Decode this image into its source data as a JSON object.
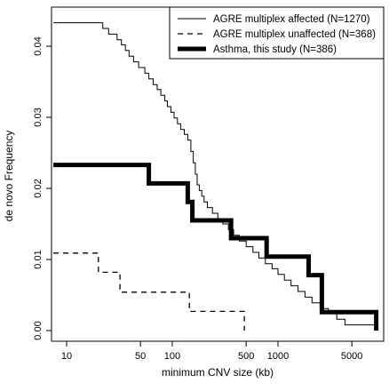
{
  "chart_data": {
    "type": "line",
    "step": true,
    "xlabel": "minimum CNV size (kb)",
    "ylabel": "de novo Frequency",
    "x_scale": "log",
    "xlim": [
      7.2,
      10000
    ],
    "ylim": [
      -0.0015,
      0.0455
    ],
    "x_ticks": [
      {
        "value": 10,
        "label": "10"
      },
      {
        "value": 50,
        "label": "50"
      },
      {
        "value": 100,
        "label": "100"
      },
      {
        "value": 500,
        "label": "500"
      },
      {
        "value": 1000,
        "label": "1000"
      },
      {
        "value": 5000,
        "label": "5000"
      }
    ],
    "y_ticks": [
      {
        "value": 0.0,
        "label": "0.00"
      },
      {
        "value": 0.01,
        "label": "0.01"
      },
      {
        "value": 0.02,
        "label": "0.02"
      },
      {
        "value": 0.03,
        "label": "0.03"
      },
      {
        "value": 0.04,
        "label": "0.04"
      }
    ],
    "grid": false,
    "legend_position": "top-right",
    "series": [
      {
        "name": "AGRE multiplex affected (N=1270)",
        "line_style": "solid-thin",
        "points": [
          [
            7.5,
            0.0433
          ],
          [
            22,
            0.0433
          ],
          [
            22,
            0.0425
          ],
          [
            25,
            0.0425
          ],
          [
            25,
            0.0417
          ],
          [
            30,
            0.0417
          ],
          [
            30,
            0.0409
          ],
          [
            33,
            0.0409
          ],
          [
            33,
            0.0402
          ],
          [
            36,
            0.0402
          ],
          [
            36,
            0.0394
          ],
          [
            39,
            0.0394
          ],
          [
            39,
            0.0386
          ],
          [
            43,
            0.0386
          ],
          [
            43,
            0.0378
          ],
          [
            48,
            0.0378
          ],
          [
            48,
            0.037
          ],
          [
            55,
            0.037
          ],
          [
            55,
            0.0362
          ],
          [
            60,
            0.0362
          ],
          [
            60,
            0.0354
          ],
          [
            66,
            0.0354
          ],
          [
            66,
            0.0346
          ],
          [
            72,
            0.0346
          ],
          [
            72,
            0.0339
          ],
          [
            78,
            0.0339
          ],
          [
            78,
            0.0331
          ],
          [
            85,
            0.0331
          ],
          [
            85,
            0.0323
          ],
          [
            90,
            0.0323
          ],
          [
            90,
            0.0315
          ],
          [
            97,
            0.0315
          ],
          [
            97,
            0.0307
          ],
          [
            104,
            0.0307
          ],
          [
            104,
            0.0299
          ],
          [
            112,
            0.0299
          ],
          [
            112,
            0.0291
          ],
          [
            120,
            0.0291
          ],
          [
            120,
            0.0283
          ],
          [
            130,
            0.0283
          ],
          [
            130,
            0.0276
          ],
          [
            140,
            0.0276
          ],
          [
            140,
            0.0268
          ],
          [
            150,
            0.0268
          ],
          [
            150,
            0.0252
          ],
          [
            158,
            0.0252
          ],
          [
            158,
            0.0236
          ],
          [
            165,
            0.0236
          ],
          [
            165,
            0.022
          ],
          [
            172,
            0.022
          ],
          [
            172,
            0.0205
          ],
          [
            180,
            0.0205
          ],
          [
            180,
            0.0197
          ],
          [
            190,
            0.0197
          ],
          [
            190,
            0.0189
          ],
          [
            200,
            0.0189
          ],
          [
            200,
            0.0181
          ],
          [
            215,
            0.0181
          ],
          [
            215,
            0.0173
          ],
          [
            240,
            0.0173
          ],
          [
            240,
            0.0165
          ],
          [
            270,
            0.0165
          ],
          [
            270,
            0.0157
          ],
          [
            300,
            0.0157
          ],
          [
            300,
            0.015
          ],
          [
            340,
            0.015
          ],
          [
            340,
            0.0142
          ],
          [
            380,
            0.0142
          ],
          [
            380,
            0.0134
          ],
          [
            430,
            0.0134
          ],
          [
            430,
            0.0126
          ],
          [
            500,
            0.0126
          ],
          [
            500,
            0.0118
          ],
          [
            580,
            0.0118
          ],
          [
            580,
            0.011
          ],
          [
            660,
            0.011
          ],
          [
            660,
            0.0102
          ],
          [
            760,
            0.0102
          ],
          [
            760,
            0.0094
          ],
          [
            880,
            0.0094
          ],
          [
            880,
            0.0087
          ],
          [
            1000,
            0.0087
          ],
          [
            1000,
            0.0079
          ],
          [
            1150,
            0.0079
          ],
          [
            1150,
            0.0071
          ],
          [
            1330,
            0.0071
          ],
          [
            1330,
            0.0063
          ],
          [
            1550,
            0.0063
          ],
          [
            1550,
            0.0055
          ],
          [
            1800,
            0.0055
          ],
          [
            1800,
            0.0047
          ],
          [
            2100,
            0.0047
          ],
          [
            2100,
            0.0039
          ],
          [
            2500,
            0.0039
          ],
          [
            2500,
            0.0031
          ],
          [
            3000,
            0.0031
          ],
          [
            3000,
            0.0024
          ],
          [
            3600,
            0.0024
          ],
          [
            3600,
            0.0016
          ],
          [
            4300,
            0.0016
          ],
          [
            4300,
            0.0008
          ],
          [
            8500,
            0.0008
          ],
          [
            8500,
            0.0
          ]
        ]
      },
      {
        "name": "AGRE multiplex unaffected (N=368)",
        "line_style": "dashed",
        "points": [
          [
            7.5,
            0.0109
          ],
          [
            20,
            0.0109
          ],
          [
            20,
            0.0082
          ],
          [
            32,
            0.0082
          ],
          [
            32,
            0.0054
          ],
          [
            145,
            0.0054
          ],
          [
            145,
            0.0027
          ],
          [
            480,
            0.0027
          ],
          [
            480,
            0.0
          ]
        ]
      },
      {
        "name": "Asthma, this study (N=386)",
        "line_style": "solid-thick",
        "points": [
          [
            7.5,
            0.0233
          ],
          [
            60,
            0.0233
          ],
          [
            60,
            0.0207
          ],
          [
            140,
            0.0207
          ],
          [
            140,
            0.0181
          ],
          [
            155,
            0.0181
          ],
          [
            155,
            0.0155
          ],
          [
            360,
            0.0155
          ],
          [
            360,
            0.013
          ],
          [
            780,
            0.013
          ],
          [
            780,
            0.0104
          ],
          [
            1950,
            0.0104
          ],
          [
            1950,
            0.0078
          ],
          [
            2600,
            0.0078
          ],
          [
            2600,
            0.0026
          ],
          [
            8500,
            0.0026
          ],
          [
            8500,
            0.0
          ]
        ]
      }
    ]
  }
}
